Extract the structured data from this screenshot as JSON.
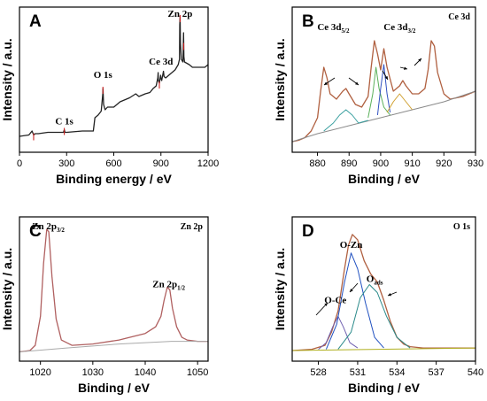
{
  "chart_data": [
    {
      "id": "A",
      "type": "line",
      "panel_letter": "A",
      "title": "",
      "xlabel": "Binding energy / eV",
      "ylabel": "Intensity / a.u.",
      "xlim": [
        0,
        1200
      ],
      "ylim": [
        0,
        100
      ],
      "xticks": [
        0,
        300,
        600,
        900,
        1200
      ],
      "show_y_ticks": false,
      "colors": {
        "spectrum": "#222222",
        "marker": "#cc2222"
      },
      "annotations": [
        {
          "text": "C 1s",
          "x": 285,
          "y": 17
        },
        {
          "text": "O 1s",
          "x": 531,
          "y": 52
        },
        {
          "text": "Ce 3d",
          "x": 900,
          "y": 62
        },
        {
          "text": "Zn 2p",
          "x": 1022,
          "y": 98
        }
      ],
      "series": [
        {
          "name": "",
          "x": [
            0,
            60,
            80,
            90,
            100,
            120,
            180,
            200,
            280,
            285,
            290,
            300,
            400,
            470,
            480,
            500,
            520,
            530,
            531,
            535,
            545,
            560,
            600,
            620,
            640,
            660,
            700,
            740,
            760,
            800,
            830,
            850,
            870,
            880,
            882,
            884,
            890,
            898,
            900,
            905,
            916,
            920,
            930,
            960,
            990,
            1000,
            1010,
            1018,
            1020,
            1022,
            1024,
            1030,
            1040,
            1044,
            1046,
            1050,
            1080,
            1100,
            1150,
            1180,
            1190,
            1200
          ],
          "y": [
            8,
            9,
            12,
            9,
            10,
            10,
            11,
            11,
            11,
            13,
            11,
            11,
            12,
            12,
            22,
            24,
            27,
            40,
            44,
            32,
            28,
            30,
            30,
            32,
            34,
            35,
            37,
            40,
            38,
            40,
            41,
            44,
            46,
            52,
            56,
            50,
            48,
            54,
            52,
            50,
            57,
            53,
            52,
            55,
            58,
            60,
            62,
            66,
            92,
            98,
            78,
            66,
            64,
            86,
            68,
            64,
            62,
            60,
            60,
            60,
            61,
            62
          ]
        }
      ],
      "markers_x": [
        90,
        285,
        531,
        890,
        1022,
        1045
      ]
    },
    {
      "id": "B",
      "type": "line",
      "panel_letter": "B",
      "title": "Ce 3d",
      "xlabel": "Binding / eV",
      "ylabel": "Intensity / a.u.",
      "xlim": [
        872,
        930
      ],
      "ylim": [
        0,
        100
      ],
      "xticks": [
        880,
        890,
        900,
        910,
        920,
        930
      ],
      "show_y_ticks": false,
      "colors": {
        "raw": "#b06040",
        "fit": "#999999",
        "baseline": "#8a8a8a",
        "c1": "#3aa0a0",
        "c2": "#5ab05a",
        "c3": "#3050c0",
        "c4": "#c060c0",
        "c5": "#d0a030"
      },
      "annotations": [
        {
          "text": "Ce 3d",
          "sub": "5/2",
          "x": 885,
          "y": 88
        },
        {
          "text": "Ce 3d",
          "sub": "3/2",
          "x": 906,
          "y": 88
        }
      ],
      "series": [
        {
          "name": "",
          "x": [
            872,
            874,
            876,
            878,
            880,
            881,
            882,
            883,
            884,
            886,
            888,
            889,
            890,
            892,
            894,
            896,
            897,
            898,
            899,
            900,
            901,
            902,
            904,
            906,
            907,
            908,
            910,
            912,
            914,
            915,
            916,
            917,
            918,
            920,
            922,
            924,
            926,
            928,
            930
          ],
          "y": [
            4,
            5,
            7,
            12,
            22,
            42,
            60,
            52,
            40,
            36,
            42,
            44,
            40,
            32,
            30,
            38,
            60,
            80,
            70,
            58,
            74,
            60,
            42,
            46,
            50,
            46,
            40,
            40,
            44,
            58,
            80,
            76,
            56,
            40,
            36,
            37,
            38,
            40,
            42
          ]
        },
        {
          "name": "",
          "x": [
            872,
            880,
            890,
            900,
            910,
            920,
            930
          ],
          "y": [
            4,
            10,
            16,
            22,
            28,
            34,
            42
          ]
        },
        {
          "name": "",
          "x": [
            882,
            885,
            887,
            889,
            891,
            893,
            896
          ],
          "y": [
            12,
            18,
            24,
            28,
            24,
            18,
            20
          ]
        },
        {
          "name": "",
          "x": [
            896,
            897.5,
            898.5,
            899.5,
            901,
            903
          ],
          "y": [
            22,
            40,
            60,
            44,
            30,
            24
          ]
        },
        {
          "name": "",
          "x": [
            899,
            900,
            901,
            902,
            903
          ],
          "y": [
            24,
            44,
            62,
            40,
            26
          ]
        },
        {
          "name": "",
          "x": [
            902,
            904,
            906,
            908,
            910
          ],
          "y": [
            26,
            34,
            40,
            34,
            28
          ]
        }
      ]
    },
    {
      "id": "C",
      "type": "line",
      "panel_letter": "C",
      "title": "Zn 2p",
      "xlabel": "Binding / eV",
      "ylabel": "Intensity / a.u.",
      "xlim": [
        1016,
        1052
      ],
      "ylim": [
        0,
        100
      ],
      "xticks": [
        1020,
        1030,
        1040,
        1050
      ],
      "show_y_ticks": false,
      "colors": {
        "raw": "#b06060",
        "fit": "#888888",
        "baseline": "#aaaaaa"
      },
      "annotations": [
        {
          "text": "Zn 2p",
          "sub": "3/2",
          "x": 1021.5,
          "y": 96
        },
        {
          "text": "Zn 2p",
          "sub": "1/2",
          "x": 1044.5,
          "y": 52
        }
      ],
      "series": [
        {
          "name": "",
          "x": [
            1016,
            1018,
            1019,
            1020,
            1020.6,
            1021.2,
            1021.6,
            1022.2,
            1023,
            1024,
            1026,
            1030,
            1035,
            1040,
            1042,
            1043,
            1043.6,
            1044.2,
            1044.7,
            1045.2,
            1046,
            1047,
            1048,
            1050,
            1052
          ],
          "y": [
            3,
            4,
            8,
            30,
            70,
            96,
            94,
            60,
            28,
            12,
            8,
            9,
            12,
            17,
            22,
            30,
            42,
            52,
            50,
            36,
            22,
            14,
            12,
            11,
            11
          ]
        },
        {
          "name": "",
          "x": [
            1016,
            1025,
            1035,
            1045,
            1052
          ],
          "y": [
            3,
            6,
            9,
            11,
            11
          ]
        }
      ]
    },
    {
      "id": "D",
      "type": "line",
      "panel_letter": "D",
      "title": "O 1s",
      "xlabel": "Binding / eV",
      "ylabel": "Intensity / a.u.",
      "xlim": [
        526,
        540
      ],
      "ylim": [
        0,
        100
      ],
      "xticks": [
        528,
        531,
        534,
        537,
        540
      ],
      "show_y_ticks": false,
      "colors": {
        "raw": "#b06040",
        "fit": "#a0a040",
        "baseline": "#b0b020",
        "OCe": "#7060b0",
        "OZn": "#2050c0",
        "Oads": "#2a8a8a"
      },
      "annotations": [
        {
          "text": "O-Ce",
          "x": 529.3,
          "y": 40
        },
        {
          "text": "O-Zn",
          "x": 530.5,
          "y": 82
        },
        {
          "text": "O",
          "sub": "ads",
          "x": 532.3,
          "y": 56
        }
      ],
      "series": [
        {
          "name": "",
          "x": [
            526,
            527.5,
            528.5,
            529,
            529.5,
            530,
            530.3,
            530.6,
            531,
            531.5,
            532,
            532.5,
            533,
            533.5,
            534,
            534.5,
            535,
            536,
            540
          ],
          "y": [
            4,
            5,
            8,
            18,
            34,
            66,
            84,
            92,
            88,
            72,
            62,
            56,
            42,
            26,
            14,
            9,
            7,
            6,
            6
          ]
        },
        {
          "name": "",
          "x": [
            528,
            528.6,
            529.1,
            529.5,
            529.9,
            530.4,
            531
          ],
          "y": [
            5,
            10,
            22,
            30,
            22,
            10,
            6
          ]
        },
        {
          "name": "",
          "x": [
            528.6,
            529.4,
            530,
            530.5,
            531,
            531.6,
            532.3,
            533
          ],
          "y": [
            5,
            24,
            56,
            78,
            66,
            40,
            14,
            6
          ]
        },
        {
          "name": "",
          "x": [
            529.5,
            530.5,
            531.2,
            531.9,
            532.5,
            533.2,
            534,
            535
          ],
          "y": [
            5,
            18,
            44,
            54,
            48,
            30,
            14,
            6
          ]
        },
        {
          "name": "",
          "x": [
            526,
            540
          ],
          "y": [
            4,
            6
          ]
        }
      ]
    }
  ]
}
